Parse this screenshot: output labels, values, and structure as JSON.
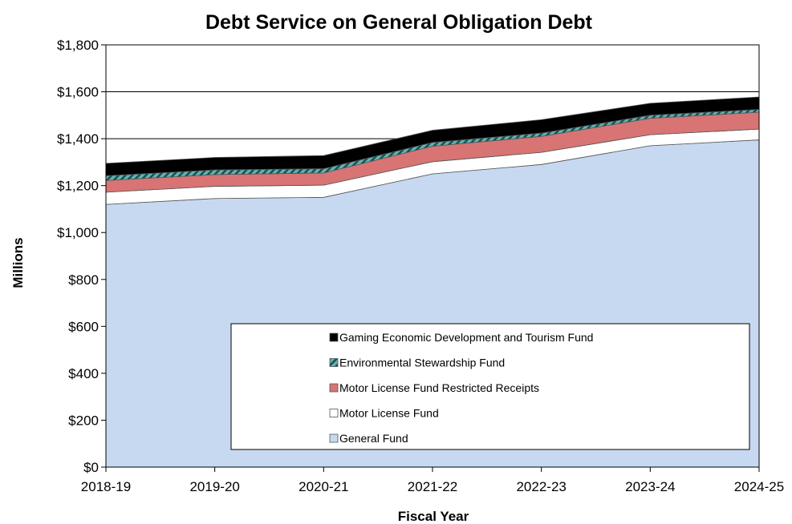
{
  "chart_data": {
    "type": "area",
    "stacked": true,
    "title": "Debt Service on General Obligation Debt",
    "xlabel": "Fiscal Year",
    "ylabel": "Millions",
    "categories": [
      "2018-19",
      "2019-20",
      "2020-21",
      "2021-22",
      "2022-23",
      "2023-24",
      "2024-25"
    ],
    "ylim": [
      0,
      1800
    ],
    "yticks": [
      0,
      200,
      400,
      600,
      800,
      1000,
      1200,
      1400,
      1600,
      1800
    ],
    "ytick_labels": [
      "$0",
      "$200",
      "$400",
      "$600",
      "$800",
      "$1,000",
      "$1,200",
      "$1,400",
      "$1,600",
      "$1,800"
    ],
    "grid": true,
    "legend_position": "bottom-right inside plot",
    "series": [
      {
        "name": "General Fund",
        "color": "#c6d9f1",
        "pattern": "solid",
        "values": [
          1120,
          1145,
          1150,
          1250,
          1290,
          1370,
          1395
        ]
      },
      {
        "name": "Motor License Fund",
        "color": "#ffffff",
        "pattern": "solid",
        "values": [
          52,
          52,
          52,
          52,
          52,
          47,
          46
        ]
      },
      {
        "name": "Motor License Fund Restricted Receipts",
        "color": "#d87474",
        "pattern": "solid",
        "values": [
          50,
          50,
          52,
          66,
          68,
          70,
          72
        ]
      },
      {
        "name": "Environmental Stewardship Fund",
        "color": "#5fb3b3",
        "pattern": "diagonal-stripes",
        "values": [
          20,
          20,
          18,
          16,
          14,
          13,
          12
        ]
      },
      {
        "name": "Gaming Economic Development and Tourism Fund",
        "color": "#000000",
        "pattern": "solid",
        "values": [
          53,
          53,
          56,
          52,
          57,
          51,
          53
        ]
      }
    ]
  }
}
